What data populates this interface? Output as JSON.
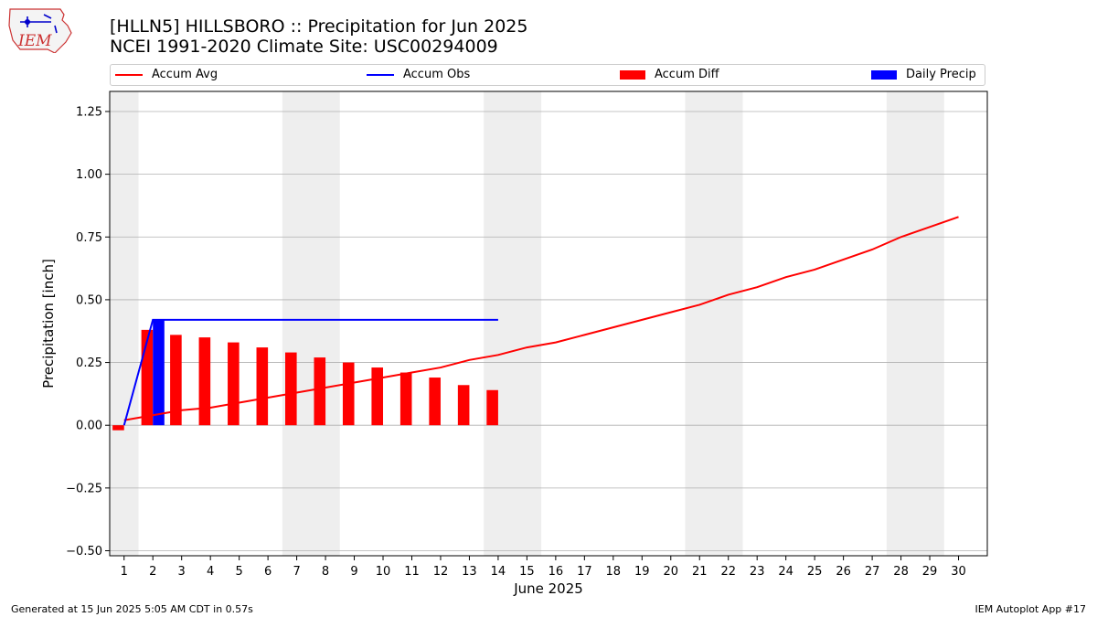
{
  "header": {
    "title_line1": "[HLLN5] HILLSBORO :: Precipitation for Jun 2025",
    "title_line2": "NCEI 1991-2020 Climate Site: USC00294009"
  },
  "logo": {
    "text": "IEM",
    "icon": "iem-iowa-logo"
  },
  "footer": {
    "left": "Generated at 15 Jun 2025 5:05 AM CDT in 0.57s",
    "right": "IEM Autoplot App #17"
  },
  "colors": {
    "accum_avg": "#ff0000",
    "accum_obs": "#0000ff",
    "accum_diff": "#ff0000",
    "daily_precip": "#0000ff",
    "weekend_band": "#eeeeee",
    "grid": "#b0b0b0"
  },
  "chart_data": {
    "type": "bar",
    "title": "[HLLN5] HILLSBORO :: Precipitation for Jun 2025",
    "subtitle": "NCEI 1991-2020 Climate Site: USC00294009",
    "xlabel": "June 2025",
    "ylabel": "Precipitation [inch]",
    "xlim": [
      0.5,
      31
    ],
    "ylim": [
      -0.52,
      1.33
    ],
    "yticks": [
      -0.5,
      -0.25,
      0.0,
      0.25,
      0.5,
      0.75,
      1.0,
      1.25
    ],
    "ytick_labels": [
      "−0.50",
      "−0.25",
      "0.00",
      "0.25",
      "0.50",
      "0.75",
      "1.00",
      "1.25"
    ],
    "xticks": [
      1,
      2,
      3,
      4,
      5,
      6,
      7,
      8,
      9,
      10,
      11,
      12,
      13,
      14,
      15,
      16,
      17,
      18,
      19,
      20,
      21,
      22,
      23,
      24,
      25,
      26,
      27,
      28,
      29,
      30
    ],
    "grid": "horizontal",
    "legend_position": "top",
    "weekend_bands": [
      [
        0.5,
        1.5
      ],
      [
        6.5,
        8.5
      ],
      [
        13.5,
        15.5
      ],
      [
        20.5,
        22.5
      ],
      [
        27.5,
        29.5
      ]
    ],
    "series": [
      {
        "name": "Accum Avg",
        "kind": "line",
        "x": [
          1,
          2,
          3,
          4,
          5,
          6,
          7,
          8,
          9,
          10,
          11,
          12,
          13,
          14,
          15,
          16,
          17,
          18,
          19,
          20,
          21,
          22,
          23,
          24,
          25,
          26,
          27,
          28,
          29,
          30
        ],
        "values": [
          0.02,
          0.04,
          0.06,
          0.07,
          0.09,
          0.11,
          0.13,
          0.15,
          0.17,
          0.19,
          0.21,
          0.23,
          0.26,
          0.28,
          0.31,
          0.33,
          0.36,
          0.39,
          0.42,
          0.45,
          0.48,
          0.52,
          0.55,
          0.59,
          0.62,
          0.66,
          0.7,
          0.75,
          0.79,
          0.83
        ]
      },
      {
        "name": "Accum Obs",
        "kind": "line",
        "x": [
          1,
          2,
          3,
          4,
          5,
          6,
          7,
          8,
          9,
          10,
          11,
          12,
          13,
          14
        ],
        "values": [
          0.0,
          0.42,
          0.42,
          0.42,
          0.42,
          0.42,
          0.42,
          0.42,
          0.42,
          0.42,
          0.42,
          0.42,
          0.42,
          0.42
        ]
      },
      {
        "name": "Accum Diff",
        "kind": "bar",
        "x": [
          1,
          2,
          3,
          4,
          5,
          6,
          7,
          8,
          9,
          10,
          11,
          12,
          13,
          14
        ],
        "values": [
          -0.02,
          0.38,
          0.36,
          0.35,
          0.33,
          0.31,
          0.29,
          0.27,
          0.25,
          0.23,
          0.21,
          0.19,
          0.16,
          0.14
        ]
      },
      {
        "name": "Daily Precip",
        "kind": "bar",
        "x": [
          1,
          2,
          3,
          4,
          5,
          6,
          7,
          8,
          9,
          10,
          11,
          12,
          13,
          14
        ],
        "values": [
          0,
          0.42,
          0,
          0,
          0,
          0,
          0,
          0,
          0,
          0,
          0,
          0,
          0,
          0
        ]
      }
    ]
  }
}
